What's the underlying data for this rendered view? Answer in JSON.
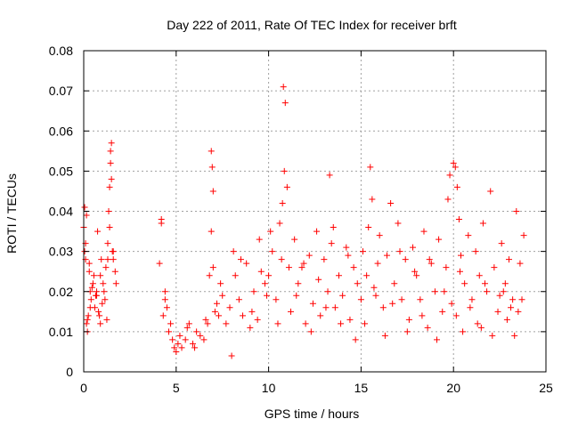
{
  "chart_data": {
    "type": "scatter",
    "title": "Day 222 of 2011, Rate Of TEC Index for receiver brft",
    "xlabel": "GPS time / hours",
    "ylabel": "ROTI / TECUs",
    "xlim": [
      0,
      25
    ],
    "ylim": [
      0,
      0.08
    ],
    "xticks": [
      0,
      5,
      10,
      15,
      20,
      25
    ],
    "xtick_labels": [
      "0",
      "5",
      "10",
      "15",
      "20",
      "25"
    ],
    "yticks": [
      0,
      0.01,
      0.02,
      0.03,
      0.04,
      0.05,
      0.06,
      0.07,
      0.08
    ],
    "ytick_labels": [
      "0",
      "0.01",
      "0.02",
      "0.03",
      "0.04",
      "0.05",
      "0.06",
      "0.07",
      "0.08"
    ],
    "grid": true,
    "marker": "plus",
    "color": "#ff0000",
    "series": [
      {
        "x": [
          0.0,
          0.05,
          0.1,
          0.15,
          0.2,
          0.25,
          0.3,
          0.35,
          0.4,
          0.5,
          0.6,
          0.7,
          0.8,
          0.9,
          1.0,
          1.1,
          1.2,
          1.3,
          1.35,
          1.4,
          1.45,
          1.5,
          1.55,
          1.6,
          1.7,
          1.75,
          0.05,
          0.1,
          0.2,
          0.3,
          0.45,
          0.55,
          0.65,
          0.75,
          0.85,
          0.95,
          1.05,
          1.15,
          1.25,
          1.4,
          1.5,
          1.6,
          0.15,
          0.35,
          0.7,
          0.9,
          1.3,
          1.45,
          4.1,
          4.2,
          4.3,
          4.4,
          4.5,
          4.6,
          4.7,
          4.8,
          4.9,
          5.0,
          5.1,
          5.2,
          5.3,
          5.5,
          5.7,
          5.9,
          6.1,
          6.3,
          6.5,
          6.7,
          6.8,
          6.9,
          7.0,
          7.1,
          7.2,
          7.3,
          7.5,
          7.7,
          7.9,
          8.0,
          8.2,
          8.4,
          8.6,
          8.8,
          9.0,
          9.2,
          9.4,
          9.6,
          9.8,
          4.2,
          4.4,
          6.9,
          7.0,
          6.95,
          5.6,
          6.0,
          6.6,
          7.4,
          8.1,
          8.5,
          9.1,
          9.5,
          9.9,
          10.0,
          10.2,
          10.4,
          10.6,
          10.7,
          10.8,
          10.9,
          11.0,
          11.2,
          11.4,
          11.6,
          11.8,
          12.0,
          12.2,
          12.4,
          12.6,
          12.8,
          13.0,
          13.2,
          13.4,
          13.6,
          13.8,
          14.0,
          14.2,
          14.4,
          14.6,
          14.8,
          15.0,
          10.1,
          10.5,
          10.75,
          10.85,
          11.1,
          11.5,
          11.9,
          12.3,
          12.7,
          13.1,
          13.3,
          13.5,
          13.9,
          14.3,
          14.7,
          15.1,
          15.3,
          15.5,
          15.6,
          15.8,
          16.0,
          16.2,
          16.4,
          16.6,
          16.8,
          17.0,
          17.2,
          17.4,
          17.6,
          17.8,
          18.0,
          18.2,
          18.4,
          18.6,
          18.8,
          19.0,
          19.2,
          19.4,
          19.6,
          19.8,
          20.0,
          15.2,
          15.4,
          15.7,
          15.9,
          16.3,
          16.7,
          17.1,
          17.5,
          17.9,
          18.3,
          18.7,
          19.1,
          19.5,
          19.7,
          19.9,
          20.1,
          20.2,
          20.3,
          20.4,
          20.6,
          20.8,
          21.0,
          21.2,
          21.4,
          21.6,
          21.8,
          22.0,
          22.2,
          22.4,
          22.6,
          22.8,
          23.0,
          23.2,
          23.4,
          23.6,
          23.8,
          20.15,
          20.35,
          20.5,
          20.9,
          21.3,
          21.7,
          22.1,
          22.5,
          22.9,
          23.3,
          23.7,
          23.5,
          21.5,
          22.7,
          23.1
        ],
        "y": [
          0.036,
          0.041,
          0.028,
          0.012,
          0.01,
          0.014,
          0.025,
          0.02,
          0.018,
          0.022,
          0.016,
          0.019,
          0.015,
          0.024,
          0.017,
          0.02,
          0.026,
          0.032,
          0.04,
          0.046,
          0.052,
          0.057,
          0.03,
          0.028,
          0.025,
          0.022,
          0.03,
          0.032,
          0.013,
          0.027,
          0.021,
          0.024,
          0.019,
          0.035,
          0.014,
          0.028,
          0.022,
          0.018,
          0.013,
          0.036,
          0.048,
          0.03,
          0.039,
          0.016,
          0.02,
          0.012,
          0.028,
          0.055,
          0.027,
          0.037,
          0.014,
          0.018,
          0.016,
          0.01,
          0.012,
          0.008,
          0.006,
          0.005,
          0.007,
          0.009,
          0.006,
          0.008,
          0.012,
          0.007,
          0.01,
          0.009,
          0.008,
          0.012,
          0.024,
          0.035,
          0.026,
          0.015,
          0.017,
          0.014,
          0.019,
          0.012,
          0.016,
          0.004,
          0.024,
          0.018,
          0.014,
          0.027,
          0.011,
          0.02,
          0.013,
          0.025,
          0.022,
          0.038,
          0.02,
          0.055,
          0.045,
          0.051,
          0.011,
          0.006,
          0.013,
          0.022,
          0.03,
          0.028,
          0.015,
          0.033,
          0.019,
          0.024,
          0.03,
          0.018,
          0.037,
          0.028,
          0.071,
          0.067,
          0.046,
          0.015,
          0.033,
          0.022,
          0.026,
          0.012,
          0.029,
          0.017,
          0.035,
          0.014,
          0.028,
          0.02,
          0.032,
          0.016,
          0.024,
          0.019,
          0.031,
          0.013,
          0.026,
          0.022,
          0.018,
          0.035,
          0.012,
          0.042,
          0.05,
          0.026,
          0.019,
          0.027,
          0.01,
          0.023,
          0.016,
          0.049,
          0.036,
          0.012,
          0.029,
          0.008,
          0.03,
          0.024,
          0.051,
          0.043,
          0.019,
          0.034,
          0.016,
          0.029,
          0.042,
          0.022,
          0.037,
          0.018,
          0.028,
          0.013,
          0.031,
          0.024,
          0.018,
          0.035,
          0.011,
          0.027,
          0.02,
          0.033,
          0.015,
          0.026,
          0.049,
          0.052,
          0.012,
          0.036,
          0.021,
          0.027,
          0.009,
          0.017,
          0.03,
          0.01,
          0.025,
          0.014,
          0.028,
          0.008,
          0.02,
          0.043,
          0.017,
          0.051,
          0.046,
          0.038,
          0.029,
          0.022,
          0.034,
          0.018,
          0.03,
          0.024,
          0.037,
          0.02,
          0.045,
          0.026,
          0.015,
          0.032,
          0.022,
          0.028,
          0.018,
          0.04,
          0.027,
          0.034,
          0.014,
          0.025,
          0.01,
          0.016,
          0.012,
          0.022,
          0.009,
          0.019,
          0.013,
          0.009,
          0.018,
          0.015,
          0.011,
          0.02,
          0.016
        ]
      }
    ]
  }
}
